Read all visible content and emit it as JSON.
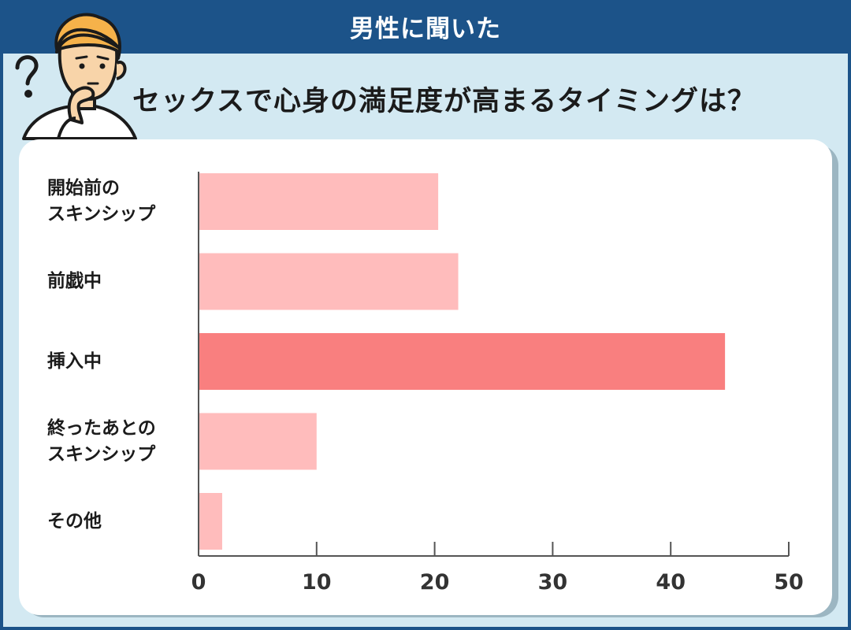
{
  "header": {
    "title": "男性に聞いた"
  },
  "question": "セックスで心身の満足度が高まるタイミングは？",
  "colors": {
    "header_bg": "#1c5389",
    "panel_bg": "#d3e9f2",
    "bar_normal": "#ffbcbc",
    "bar_highlight": "#f97f7f"
  },
  "chart_data": {
    "type": "bar",
    "orientation": "horizontal",
    "categories": [
      [
        "開始前の",
        "スキンシップ"
      ],
      [
        "前戯中"
      ],
      [
        "挿入中"
      ],
      [
        "終ったあとの",
        "スキンシップ"
      ],
      [
        "その他"
      ]
    ],
    "values": [
      20.3,
      22.0,
      44.6,
      10.0,
      2.0
    ],
    "highlight_index": 2,
    "xlim": [
      0,
      50
    ],
    "xticks": [
      0,
      10,
      20,
      30,
      40,
      50
    ],
    "grid": false
  }
}
